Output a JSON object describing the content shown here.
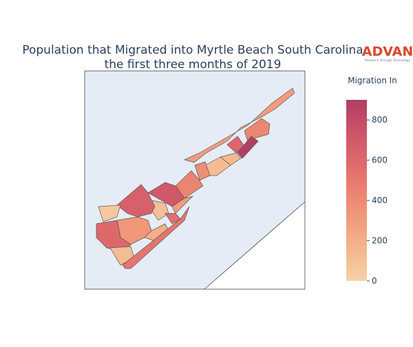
{
  "chart_data": {
    "type": "choropleth",
    "title": [
      "Population that Migrated into Myrtle Beach South Carolina",
      "the first three months of 2019"
    ],
    "logo": {
      "name": "ADVAN",
      "tagline": "Research through Technology"
    },
    "colorbar": {
      "title": "Migration In",
      "zlim": [
        0,
        900
      ],
      "ticks": [
        0,
        200,
        400,
        600,
        800
      ],
      "colorscale": [
        "#f6d2a9",
        "#f5b78e",
        "#f19c7c",
        "#ea8171",
        "#dd686c",
        "#ca5268",
        "#b13f64"
      ]
    },
    "values": [
      300,
      420,
      600,
      900,
      150,
      120,
      380,
      430,
      700,
      300,
      100,
      650,
      60,
      550,
      330,
      600,
      200,
      120,
      520
    ]
  }
}
